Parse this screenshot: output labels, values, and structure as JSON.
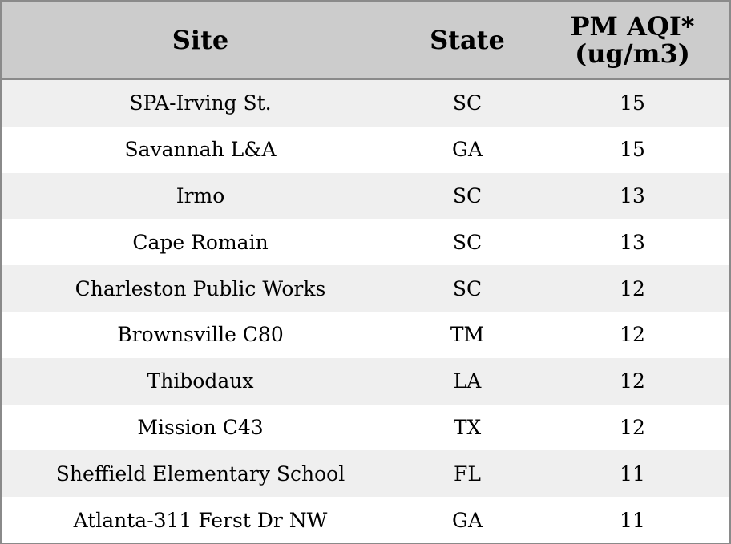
{
  "table": {
    "headers": {
      "site": "Site",
      "state": "State",
      "pm_line1": "PM AQI*",
      "pm_line2": "(ug/m3)"
    },
    "rows": [
      {
        "site": "SPA-Irving St.",
        "state": "SC",
        "pm": "15"
      },
      {
        "site": "Savannah L&A",
        "state": "GA",
        "pm": "15"
      },
      {
        "site": "Irmo",
        "state": "SC",
        "pm": "13"
      },
      {
        "site": "Cape Romain",
        "state": "SC",
        "pm": "13"
      },
      {
        "site": "Charleston Public Works",
        "state": "SC",
        "pm": "12"
      },
      {
        "site": "Brownsville C80",
        "state": "TM",
        "pm": "12"
      },
      {
        "site": "Thibodaux",
        "state": "LA",
        "pm": "12"
      },
      {
        "site": "Mission C43",
        "state": "TX",
        "pm": "12"
      },
      {
        "site": "Sheffield Elementary School",
        "state": "FL",
        "pm": "11"
      },
      {
        "site": "Atlanta-311 Ferst Dr NW",
        "state": "GA",
        "pm": "11"
      }
    ]
  }
}
